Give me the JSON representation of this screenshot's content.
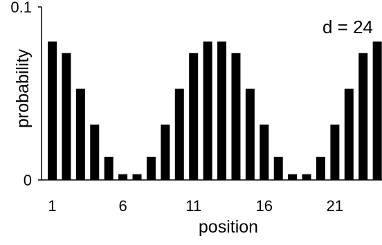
{
  "chart_data": {
    "type": "bar",
    "title": "",
    "xlabel": "position",
    "ylabel": "probability",
    "annotation": "d = 24",
    "ylim": [
      0,
      0.1
    ],
    "y_tick_labels": [
      "0",
      "0.1"
    ],
    "x_tick_labels": [
      "1",
      "6",
      "11",
      "16",
      "21"
    ],
    "categories": [
      1,
      2,
      3,
      4,
      5,
      6,
      7,
      8,
      9,
      10,
      11,
      12,
      13,
      14,
      15,
      16,
      17,
      18,
      19,
      20,
      21,
      22,
      23,
      24
    ],
    "values": [
      0.08,
      0.0733,
      0.0527,
      0.032,
      0.0133,
      0.0033,
      0.0033,
      0.0133,
      0.032,
      0.0527,
      0.0733,
      0.08,
      0.08,
      0.0733,
      0.0527,
      0.032,
      0.0133,
      0.0033,
      0.0033,
      0.0133,
      0.032,
      0.0527,
      0.0733,
      0.08
    ],
    "grid": false,
    "bar_color": "#000000"
  }
}
